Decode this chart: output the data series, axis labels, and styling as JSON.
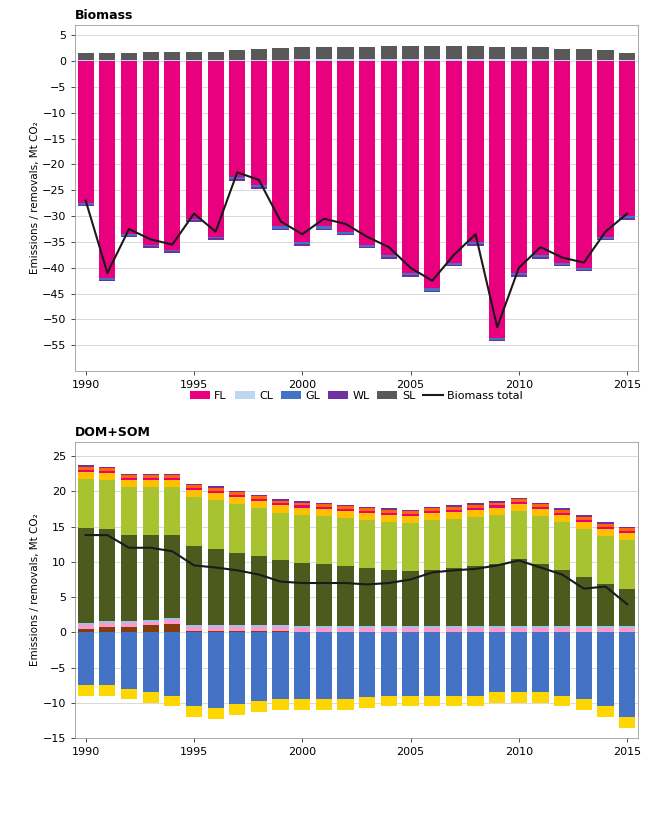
{
  "years": [
    1990,
    1991,
    1992,
    1993,
    1994,
    1995,
    1996,
    1997,
    1998,
    1999,
    2000,
    2001,
    2002,
    2003,
    2004,
    2005,
    2006,
    2007,
    2008,
    2009,
    2010,
    2011,
    2012,
    2013,
    2014,
    2015
  ],
  "biomass": {
    "FL": [
      -27.5,
      -42.0,
      -33.5,
      -35.5,
      -36.5,
      -30.5,
      -34.0,
      -22.5,
      -24.0,
      -32.0,
      -35.0,
      -32.0,
      -33.0,
      -35.5,
      -37.5,
      -41.0,
      -44.0,
      -39.0,
      -35.0,
      -53.5,
      -41.0,
      -37.5,
      -39.0,
      -40.0,
      -34.0,
      -30.0
    ],
    "CL": [
      0.3,
      0.3,
      0.3,
      0.3,
      0.3,
      0.3,
      0.3,
      0.3,
      0.3,
      0.3,
      0.4,
      0.4,
      0.4,
      0.4,
      0.4,
      0.4,
      0.4,
      0.4,
      0.4,
      0.4,
      0.4,
      0.4,
      0.3,
      0.3,
      0.3,
      0.3
    ],
    "GL": [
      -0.3,
      -0.3,
      -0.3,
      -0.3,
      -0.3,
      -0.3,
      -0.3,
      -0.4,
      -0.4,
      -0.4,
      -0.4,
      -0.4,
      -0.4,
      -0.4,
      -0.4,
      -0.4,
      -0.4,
      -0.4,
      -0.4,
      -0.4,
      -0.4,
      -0.4,
      -0.4,
      -0.4,
      -0.4,
      -0.4
    ],
    "WL": [
      -0.3,
      -0.3,
      -0.3,
      -0.3,
      -0.3,
      -0.3,
      -0.3,
      -0.3,
      -0.3,
      -0.3,
      -0.3,
      -0.3,
      -0.3,
      -0.3,
      -0.3,
      -0.3,
      -0.3,
      -0.3,
      -0.3,
      -0.3,
      -0.3,
      -0.3,
      -0.3,
      -0.3,
      -0.3,
      -0.3
    ],
    "SL": [
      1.2,
      1.2,
      1.2,
      1.4,
      1.4,
      1.4,
      1.4,
      1.8,
      2.0,
      2.2,
      2.3,
      2.3,
      2.4,
      2.4,
      2.5,
      2.5,
      2.5,
      2.5,
      2.5,
      2.3,
      2.3,
      2.3,
      2.1,
      2.0,
      1.8,
      1.3
    ],
    "total": [
      -27.0,
      -41.0,
      -32.5,
      -34.5,
      -35.5,
      -29.5,
      -33.0,
      -21.5,
      -23.0,
      -31.0,
      -33.5,
      -30.5,
      -31.5,
      -34.0,
      -36.0,
      -40.0,
      -42.5,
      -37.5,
      -33.5,
      -51.5,
      -40.0,
      -36.0,
      -38.0,
      -39.0,
      -33.0,
      -29.5
    ]
  },
  "domsom": {
    "FL_miner": [
      -7.5,
      -7.5,
      -8.0,
      -8.5,
      -9.0,
      -10.5,
      -10.8,
      -10.2,
      -9.8,
      -9.5,
      -9.5,
      -9.5,
      -9.5,
      -9.2,
      -9.0,
      -9.0,
      -9.0,
      -9.0,
      -9.0,
      -8.5,
      -8.5,
      -8.5,
      -9.0,
      -9.5,
      -10.5,
      -12.0
    ],
    "CL_miner": [
      0.5,
      0.8,
      0.8,
      1.0,
      1.2,
      0.2,
      0.2,
      0.2,
      0.2,
      0.2,
      0.1,
      0.1,
      0.1,
      0.1,
      0.1,
      0.1,
      0.1,
      0.1,
      0.1,
      0.1,
      0.1,
      0.1,
      0.1,
      0.1,
      0.1,
      0.1
    ],
    "GL_miner": [
      0.5,
      0.5,
      0.5,
      0.5,
      0.5,
      0.5,
      0.5,
      0.5,
      0.5,
      0.5,
      0.5,
      0.5,
      0.5,
      0.5,
      0.5,
      0.5,
      0.5,
      0.5,
      0.5,
      0.5,
      0.5,
      0.5,
      0.5,
      0.5,
      0.5,
      0.5
    ],
    "SL_SOM": [
      0.3,
      0.3,
      0.3,
      0.3,
      0.3,
      0.3,
      0.3,
      0.3,
      0.3,
      0.3,
      0.3,
      0.3,
      0.3,
      0.3,
      0.3,
      0.3,
      0.3,
      0.3,
      0.3,
      0.3,
      0.3,
      0.3,
      0.3,
      0.3,
      0.3,
      0.3
    ],
    "FL_org": [
      13.5,
      13.0,
      12.2,
      12.0,
      11.8,
      11.2,
      10.8,
      10.2,
      9.8,
      9.2,
      9.0,
      8.8,
      8.5,
      8.2,
      8.0,
      7.8,
      8.0,
      8.2,
      8.5,
      8.8,
      9.5,
      8.8,
      8.0,
      7.0,
      6.0,
      5.2
    ],
    "CL_org": [
      7.0,
      7.0,
      6.8,
      6.8,
      6.8,
      7.0,
      7.0,
      7.0,
      6.8,
      6.8,
      6.8,
      6.8,
      6.8,
      6.8,
      6.8,
      6.8,
      7.0,
      7.0,
      7.0,
      7.0,
      6.8,
      6.8,
      6.8,
      6.8,
      6.8,
      7.0
    ],
    "GL_org": [
      -1.5,
      -1.5,
      -1.5,
      -1.5,
      -1.5,
      -1.5,
      -1.5,
      -1.5,
      -1.5,
      -1.5,
      -1.5,
      -1.5,
      -1.5,
      -1.5,
      -1.5,
      -1.5,
      -1.5,
      -1.5,
      -1.5,
      -1.5,
      -1.5,
      -1.5,
      -1.5,
      -1.5,
      -1.5,
      -1.5
    ],
    "WL_SOM_org": [
      1.0,
      1.0,
      1.0,
      1.0,
      1.0,
      1.0,
      1.0,
      1.0,
      1.0,
      1.0,
      1.0,
      1.0,
      1.0,
      1.0,
      1.0,
      1.0,
      1.0,
      1.0,
      1.0,
      1.0,
      1.0,
      1.0,
      1.0,
      1.0,
      1.0,
      1.0
    ],
    "SL_dead": [
      0.3,
      0.3,
      0.3,
      0.3,
      0.3,
      0.3,
      0.3,
      0.3,
      0.3,
      0.3,
      0.3,
      0.3,
      0.3,
      0.3,
      0.3,
      0.3,
      0.3,
      0.3,
      0.3,
      0.3,
      0.3,
      0.3,
      0.3,
      0.3,
      0.3,
      0.3
    ],
    "WL_dead": [
      0.4,
      0.4,
      0.4,
      0.4,
      0.4,
      0.4,
      0.4,
      0.4,
      0.4,
      0.4,
      0.4,
      0.4,
      0.4,
      0.4,
      0.4,
      0.4,
      0.4,
      0.4,
      0.4,
      0.4,
      0.4,
      0.4,
      0.4,
      0.4,
      0.4,
      0.4
    ],
    "GL_dead": [
      0.2,
      0.2,
      0.2,
      0.2,
      0.2,
      0.2,
      0.2,
      0.2,
      0.2,
      0.2,
      0.2,
      0.2,
      0.2,
      0.2,
      0.2,
      0.2,
      0.2,
      0.2,
      0.2,
      0.2,
      0.2,
      0.2,
      0.2,
      0.2,
      0.2,
      0.2
    ],
    "soils_total": [
      13.8,
      13.8,
      12.0,
      12.0,
      11.5,
      9.5,
      9.2,
      8.8,
      8.2,
      7.2,
      7.0,
      7.0,
      7.0,
      6.8,
      7.0,
      7.5,
      8.5,
      8.8,
      9.0,
      9.5,
      10.2,
      9.2,
      8.2,
      6.2,
      6.5,
      4.0
    ]
  },
  "colors": {
    "FL": "#E8007F",
    "CL": "#BDD7EE",
    "GL": "#4472C4",
    "WL": "#7030A0",
    "SL": "#595959",
    "biomass_total": "#1A1A1A",
    "FL_miner": "#4472C4",
    "CL_miner": "#843C0C",
    "GL_miner": "#FF99CC",
    "SL_SOM": "#9DC3E6",
    "FL_org": "#4C5A1E",
    "CL_org": "#A9C230",
    "GL_org": "#FFD700",
    "WL_SOM_org": "#FFC000",
    "SL_dead": "#E8007F",
    "WL_dead": "#FF6600",
    "GL_dead": "#7030A0",
    "soils_total": "#1A1A1A"
  },
  "biomass_title": "Biomass",
  "domsom_title": "DOM+SOM",
  "ylabel": "Emissions / removals, Mt CO₂",
  "biomass_ylim": [
    -60,
    7
  ],
  "domsom_ylim": [
    -15,
    27
  ],
  "biomass_yticks": [
    -55,
    -50,
    -45,
    -40,
    -35,
    -30,
    -25,
    -20,
    -15,
    -10,
    -5,
    0,
    5
  ],
  "domsom_yticks": [
    -15,
    -10,
    -5,
    0,
    5,
    10,
    15,
    20,
    25
  ],
  "xticks": [
    1990,
    1995,
    2000,
    2005,
    2010,
    2015
  ],
  "xlim": [
    1989.5,
    2015.5
  ]
}
